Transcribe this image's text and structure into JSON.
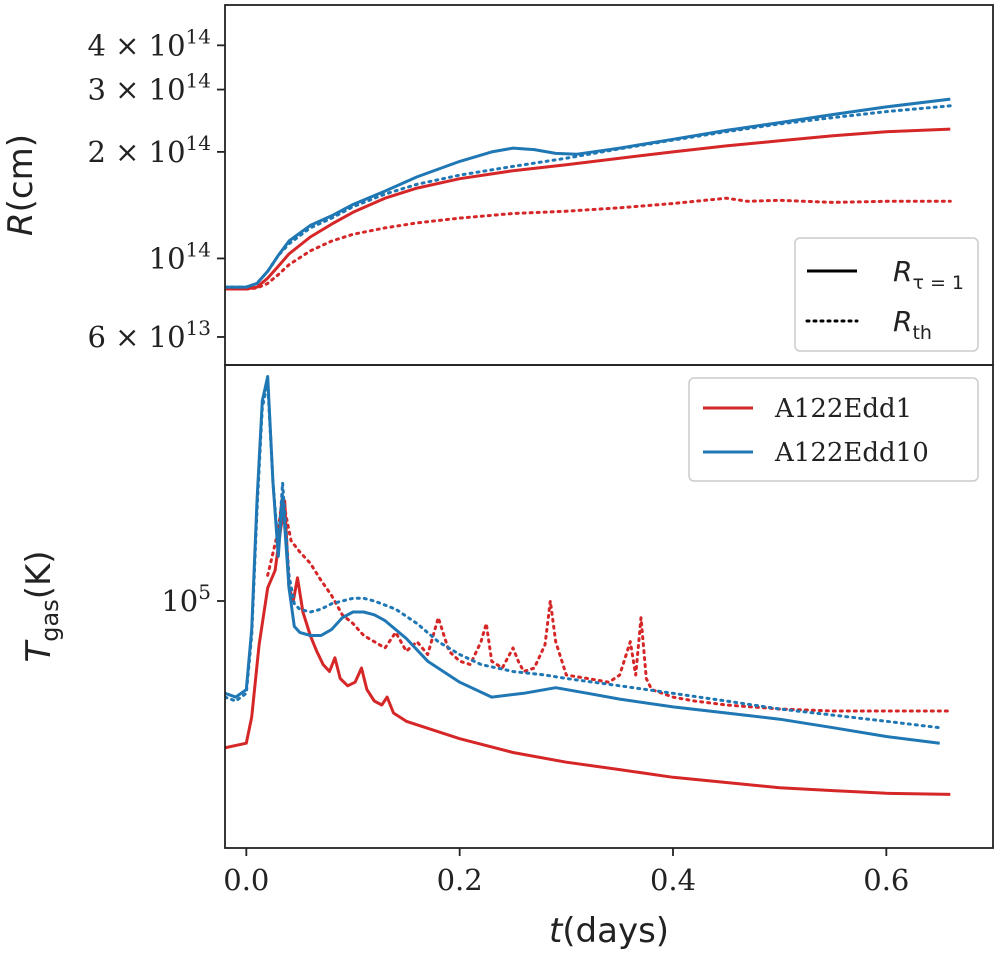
{
  "chart_data": [
    {
      "type": "line",
      "panel": "top",
      "ylabel_main": "R",
      "ylabel_unit": "(cm)",
      "yscale": "log",
      "ylim": [
        50000000000000.0,
        520000000000000.0
      ],
      "xlim": [
        -0.02,
        0.7
      ],
      "yticks": [
        {
          "value": 60000000000000.0,
          "mant": "6",
          "exp": "13"
        },
        {
          "value": 100000000000000.0,
          "mant": "",
          "exp": "14"
        },
        {
          "value": 200000000000000.0,
          "mant": "2",
          "exp": "14"
        },
        {
          "value": 300000000000000.0,
          "mant": "3",
          "exp": "14"
        },
        {
          "value": 400000000000000.0,
          "mant": "4",
          "exp": "14"
        }
      ],
      "legend": {
        "placement": "lower-right",
        "entries": [
          {
            "style": "solid",
            "main": "R",
            "sub": "τ = 1"
          },
          {
            "style": "dotted",
            "main": "R",
            "sub": "th"
          }
        ]
      },
      "series": [
        {
          "name": "A122Edd1 R_tau=1",
          "color": "#d62728",
          "dash": "solid",
          "x": [
            -0.02,
            0.0,
            0.01,
            0.02,
            0.03,
            0.04,
            0.06,
            0.08,
            0.1,
            0.13,
            0.16,
            0.2,
            0.25,
            0.3,
            0.35,
            0.4,
            0.45,
            0.5,
            0.55,
            0.6,
            0.66
          ],
          "y": [
            82000000000000.0,
            82000000000000.0,
            83000000000000.0,
            88000000000000.0,
            95000000000000.0,
            103000000000000.0,
            115000000000000.0,
            125000000000000.0,
            135000000000000.0,
            148000000000000.0,
            158000000000000.0,
            168000000000000.0,
            177000000000000.0,
            184000000000000.0,
            192000000000000.0,
            200000000000000.0,
            208000000000000.0,
            215000000000000.0,
            222000000000000.0,
            228000000000000.0,
            232000000000000.0
          ]
        },
        {
          "name": "A122Edd1 R_th",
          "color": "#d62728",
          "dash": "dotted",
          "x": [
            -0.02,
            0.0,
            0.01,
            0.02,
            0.03,
            0.04,
            0.06,
            0.08,
            0.1,
            0.13,
            0.16,
            0.2,
            0.25,
            0.3,
            0.35,
            0.4,
            0.43,
            0.45,
            0.47,
            0.5,
            0.55,
            0.6,
            0.66
          ],
          "y": [
            82000000000000.0,
            82000000000000.0,
            82500000000000.0,
            85000000000000.0,
            90000000000000.0,
            96000000000000.0,
            105000000000000.0,
            112000000000000.0,
            117000000000000.0,
            122000000000000.0,
            126000000000000.0,
            130000000000000.0,
            134000000000000.0,
            136000000000000.0,
            139000000000000.0,
            143000000000000.0,
            146000000000000.0,
            148000000000000.0,
            145000000000000.0,
            146000000000000.0,
            144000000000000.0,
            145000000000000.0,
            145000000000000.0
          ]
        },
        {
          "name": "A122Edd10 R_tau=1",
          "color": "#1f77b4",
          "dash": "solid",
          "x": [
            -0.02,
            0.0,
            0.01,
            0.02,
            0.03,
            0.04,
            0.06,
            0.08,
            0.1,
            0.13,
            0.16,
            0.2,
            0.23,
            0.25,
            0.27,
            0.29,
            0.31,
            0.35,
            0.4,
            0.45,
            0.5,
            0.55,
            0.6,
            0.66
          ],
          "y": [
            83000000000000.0,
            83000000000000.0,
            85000000000000.0,
            92000000000000.0,
            102000000000000.0,
            112000000000000.0,
            124000000000000.0,
            132000000000000.0,
            142000000000000.0,
            155000000000000.0,
            170000000000000.0,
            188000000000000.0,
            200000000000000.0,
            205000000000000.0,
            203000000000000.0,
            198000000000000.0,
            197000000000000.0,
            205000000000000.0,
            217000000000000.0,
            230000000000000.0,
            242000000000000.0,
            255000000000000.0,
            268000000000000.0,
            282000000000000.0
          ]
        },
        {
          "name": "A122Edd10 R_th",
          "color": "#1f77b4",
          "dash": "dotted",
          "x": [
            -0.02,
            0.0,
            0.01,
            0.02,
            0.03,
            0.04,
            0.06,
            0.08,
            0.1,
            0.13,
            0.16,
            0.2,
            0.25,
            0.3,
            0.35,
            0.4,
            0.45,
            0.5,
            0.55,
            0.6,
            0.66
          ],
          "y": [
            83000000000000.0,
            83000000000000.0,
            85000000000000.0,
            92000000000000.0,
            102000000000000.0,
            110000000000000.0,
            122000000000000.0,
            130000000000000.0,
            140000000000000.0,
            152000000000000.0,
            162000000000000.0,
            172000000000000.0,
            182000000000000.0,
            192000000000000.0,
            204000000000000.0,
            216000000000000.0,
            228000000000000.0,
            240000000000000.0,
            250000000000000.0,
            260000000000000.0,
            270000000000000.0
          ]
        }
      ]
    },
    {
      "type": "line",
      "panel": "bottom",
      "ylabel_main": "T",
      "ylabel_sub": "gas",
      "ylabel_unit": "(K)",
      "xlabel_main": "t",
      "xlabel_unit": "(days)",
      "yscale": "log",
      "ylim": [
        40000.0,
        240000.0
      ],
      "xlim": [
        -0.02,
        0.7
      ],
      "xticks": [
        {
          "value": 0.0,
          "label": "0.0"
        },
        {
          "value": 0.2,
          "label": "0.2"
        },
        {
          "value": 0.4,
          "label": "0.4"
        },
        {
          "value": 0.6,
          "label": "0.6"
        }
      ],
      "yticks": [
        {
          "value": 100000.0,
          "mant": "",
          "exp": "5"
        }
      ],
      "legend": {
        "placement": "upper-right",
        "entries": [
          {
            "name": "A122Edd1",
            "color": "#d62728"
          },
          {
            "name": "A122Edd10",
            "color": "#1f77b4"
          }
        ]
      },
      "series": [
        {
          "name": "A122Edd1 solid",
          "color": "#d62728",
          "dash": "solid",
          "x": [
            -0.02,
            0.0,
            0.005,
            0.012,
            0.02,
            0.027,
            0.032,
            0.036,
            0.04,
            0.044,
            0.048,
            0.053,
            0.06,
            0.066,
            0.072,
            0.078,
            0.083,
            0.088,
            0.095,
            0.102,
            0.108,
            0.113,
            0.12,
            0.127,
            0.132,
            0.138,
            0.15,
            0.2,
            0.25,
            0.3,
            0.35,
            0.4,
            0.45,
            0.5,
            0.55,
            0.6,
            0.66
          ],
          "y": [
            58000.0,
            59000.0,
            65000.0,
            85000.0,
            105000.0,
            112000.0,
            130000.0,
            145000.0,
            105000.0,
            100000.0,
            109000.0,
            96000.0,
            88000.0,
            83000.0,
            79000.0,
            77000.0,
            81000.0,
            75000.0,
            73000.0,
            74000.0,
            78000.0,
            72000.0,
            69000.0,
            68000.0,
            70000.0,
            66000.0,
            64000.0,
            60000.0,
            57000.0,
            55000.0,
            53500.0,
            52000.0,
            51000.0,
            50000.0,
            49500.0,
            49000.0,
            48800.0
          ]
        },
        {
          "name": "A122Edd1 dotted",
          "color": "#d62728",
          "dash": "dotted",
          "x": [
            0.02,
            0.03,
            0.034,
            0.038,
            0.042,
            0.05,
            0.06,
            0.07,
            0.08,
            0.09,
            0.1,
            0.11,
            0.12,
            0.13,
            0.14,
            0.15,
            0.16,
            0.17,
            0.18,
            0.19,
            0.2,
            0.21,
            0.22,
            0.225,
            0.23,
            0.24,
            0.25,
            0.255,
            0.26,
            0.27,
            0.28,
            0.285,
            0.29,
            0.3,
            0.32,
            0.34,
            0.35,
            0.36,
            0.365,
            0.37,
            0.375,
            0.38,
            0.4,
            0.42,
            0.45,
            0.5,
            0.55,
            0.6,
            0.66
          ],
          "y": [
            110000.0,
            130000.0,
            148000.0,
            135000.0,
            125000.0,
            120000.0,
            115000.0,
            108000.0,
            102000.0,
            95000.0,
            92000.0,
            88000.0,
            86000.0,
            84000.0,
            89000.0,
            83000.0,
            86000.0,
            82000.0,
            94000.0,
            83000.0,
            80000.0,
            79000.0,
            86000.0,
            92000.0,
            80000.0,
            78000.0,
            84000.0,
            80000.0,
            77000.0,
            78000.0,
            85000.0,
            100000.0,
            86000.0,
            76000.0,
            75000.0,
            74000.0,
            76000.0,
            86000.0,
            76000.0,
            94000.0,
            75000.0,
            72000.0,
            70000.0,
            69000.0,
            68000.0,
            67000.0,
            66500.0,
            66500.0,
            66500.0
          ]
        },
        {
          "name": "A122Edd10 solid",
          "color": "#1f77b4",
          "dash": "solid",
          "x": [
            -0.02,
            -0.01,
            0.0,
            0.005,
            0.01,
            0.015,
            0.02,
            0.025,
            0.03,
            0.034,
            0.04,
            0.045,
            0.05,
            0.06,
            0.07,
            0.08,
            0.09,
            0.1,
            0.11,
            0.12,
            0.13,
            0.15,
            0.17,
            0.2,
            0.23,
            0.26,
            0.29,
            0.32,
            0.35,
            0.4,
            0.45,
            0.5,
            0.55,
            0.6,
            0.65
          ],
          "y": [
            71000.0,
            70000.0,
            72000.0,
            90000.0,
            145000.0,
            210000.0,
            230000.0,
            155000.0,
            118000.0,
            148000.0,
            105000.0,
            91000.0,
            89000.0,
            88000.0,
            88000.0,
            90000.0,
            94000.0,
            96000.0,
            96000.0,
            95000.0,
            93000.0,
            87000.0,
            80000.0,
            74000.0,
            70000.0,
            71000.0,
            72500.0,
            71000.0,
            69500.0,
            67500.0,
            66000.0,
            64500.0,
            62500.0,
            60500.0,
            59000.0
          ]
        },
        {
          "name": "A122Edd10 dotted",
          "color": "#1f77b4",
          "dash": "dotted",
          "x": [
            -0.02,
            -0.01,
            0.0,
            0.005,
            0.01,
            0.015,
            0.02,
            0.025,
            0.03,
            0.034,
            0.04,
            0.045,
            0.05,
            0.06,
            0.07,
            0.08,
            0.09,
            0.1,
            0.11,
            0.12,
            0.14,
            0.16,
            0.18,
            0.2,
            0.22,
            0.25,
            0.28,
            0.3,
            0.35,
            0.4,
            0.45,
            0.5,
            0.55,
            0.6,
            0.65
          ],
          "y": [
            70000.0,
            69000.0,
            71000.0,
            88000.0,
            140000.0,
            205000.0,
            225000.0,
            155000.0,
            122000.0,
            155000.0,
            110000.0,
            99000.0,
            97000.0,
            96000.0,
            97000.0,
            99000.0,
            100000.0,
            101000.0,
            101000.0,
            100000.0,
            97000.0,
            92000.0,
            86000.0,
            82000.0,
            79000.0,
            77000.0,
            76000.0,
            75000.0,
            73000.0,
            71000.0,
            69000.0,
            67000.0,
            65500.0,
            64000.0,
            62500.0
          ]
        }
      ]
    }
  ]
}
